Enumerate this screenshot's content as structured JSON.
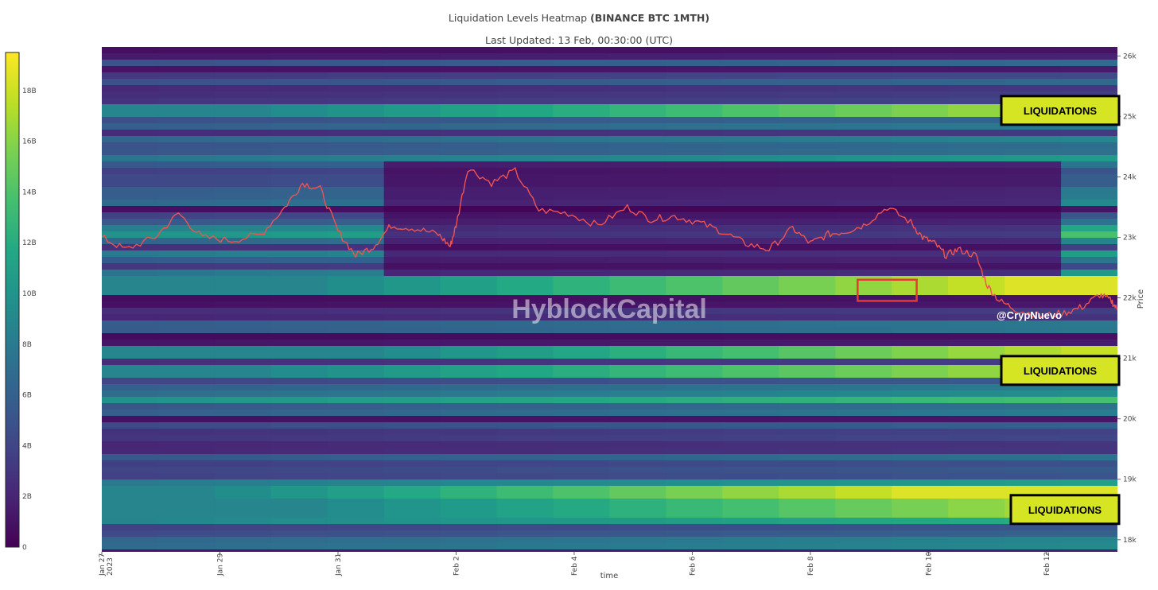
{
  "header": {
    "title_prefix": "Liquidation Levels Heatmap ",
    "title_bold": "(BINANCE BTC 1MTH)",
    "subtitle": "Last Updated: 13 Feb, 00:30:00 (UTC)"
  },
  "chart_data": {
    "type": "heatmap",
    "xlabel": "time",
    "ylabel": "Price",
    "x_ticks": [
      "Jan 27",
      "Jan 29",
      "Jan 31",
      "Feb 2",
      "Feb 4",
      "Feb 6",
      "Feb 8",
      "Feb 10",
      "Feb 12"
    ],
    "x_tick_sublabel": "2023",
    "x_range_days": [
      0,
      17.2
    ],
    "y_ticks": [
      "18k",
      "19k",
      "20k",
      "21k",
      "22k",
      "23k",
      "24k",
      "25k",
      "26k"
    ],
    "y_tick_values": [
      18000,
      19000,
      20000,
      21000,
      22000,
      23000,
      24000,
      25000,
      26000
    ],
    "y_range": [
      17800,
      26150
    ],
    "colorbar": {
      "ticks": [
        "0",
        "2B",
        "4B",
        "6B",
        "8B",
        "10B",
        "12B",
        "14B",
        "16B",
        "18B"
      ],
      "tick_values": [
        0,
        2,
        4,
        6,
        8,
        10,
        12,
        14,
        16,
        18
      ],
      "max": 19.5,
      "colors": [
        "#440154",
        "#482475",
        "#414487",
        "#355f8d",
        "#2a788e",
        "#21918c",
        "#22a884",
        "#44bf70",
        "#7ad151",
        "#bddf26",
        "#fde725"
      ]
    },
    "bands": [
      {
        "price": 25100,
        "start": 6,
        "end": 19
      },
      {
        "price": 21100,
        "start": 8,
        "end": 18
      },
      {
        "price": 20800,
        "start": 6,
        "end": 19
      },
      {
        "price": 18500,
        "start": 7,
        "end": 19
      },
      {
        "price": 18800,
        "start": 5,
        "end": 14
      },
      {
        "price": 22200,
        "start": 7,
        "end": 16
      }
    ],
    "price_series": {
      "t": [
        0,
        0.4,
        0.9,
        1.3,
        1.7,
        2.2,
        2.7,
        3.1,
        3.4,
        3.7,
        4.0,
        4.3,
        4.6,
        4.9,
        5.3,
        5.7,
        5.9,
        6.0,
        6.2,
        6.6,
        7.0,
        7.4,
        7.9,
        8.4,
        8.9,
        9.3,
        9.7,
        10.1,
        10.5,
        10.9,
        11.3,
        11.7,
        12.0,
        12.3,
        12.6,
        12.9,
        13.3,
        13.7,
        13.9,
        14.1,
        14.3,
        14.5,
        14.8,
        15.0,
        15.2,
        15.5,
        15.9,
        16.3,
        16.6,
        16.9,
        17.1,
        17.2
      ],
      "price": [
        23000,
        22800,
        23000,
        23400,
        23000,
        22950,
        23050,
        23500,
        23900,
        23800,
        23100,
        22700,
        22850,
        23200,
        23150,
        23050,
        22850,
        23200,
        24150,
        23900,
        24100,
        23450,
        23400,
        23200,
        23500,
        23300,
        23350,
        23250,
        23100,
        22900,
        22800,
        23150,
        22900,
        23050,
        23100,
        23200,
        23500,
        23250,
        23000,
        22900,
        22700,
        22800,
        22700,
        22200,
        21950,
        21800,
        21700,
        21750,
        21850,
        22050,
        21950,
        21800
      ]
    },
    "highlight_box": {
      "t_start": 12.8,
      "t_end": 13.8,
      "price_low": 21950,
      "price_high": 22300
    },
    "annotations": [
      {
        "text": "LIQUIDATIONS",
        "price": 25100
      },
      {
        "text": "LIQUIDATIONS",
        "price": 20800
      },
      {
        "text": "LIQUIDATIONS",
        "price": 18500
      }
    ],
    "watermark": "HyblockCapital",
    "credit": "@CrypNuevo"
  }
}
